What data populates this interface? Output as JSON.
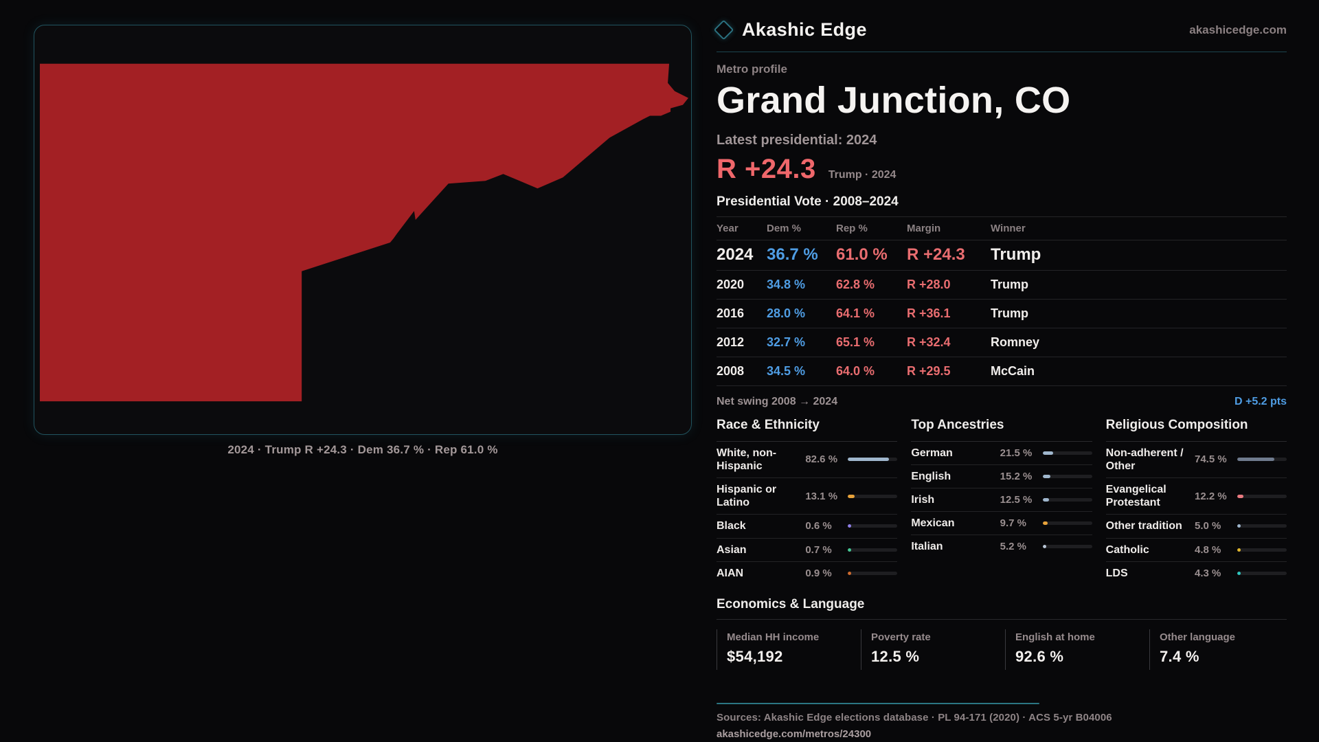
{
  "brand": {
    "name": "Akashic Edge",
    "site": "akashicedge.com",
    "accent_teal": "#2b7180"
  },
  "map": {
    "caption": "2024 · Trump R +24.3 · Dem 36.7 % · Rep 61.0 %",
    "region_color": "#a32024",
    "panel_border_color": "#21545f"
  },
  "profile": {
    "kicker": "Metro profile",
    "title": "Grand Junction, CO",
    "latest_label": "Latest presidential: 2024",
    "margin_value": "R +24.3",
    "margin_note": "Trump · 2024",
    "margin_color": "#ef676b"
  },
  "table": {
    "title": "Presidential Vote · 2008–2024",
    "columns": [
      "Year",
      "Dem %",
      "Rep %",
      "Margin",
      "Winner"
    ],
    "rows": [
      {
        "year": "2024",
        "dem": "36.7 %",
        "rep": "61.0 %",
        "margin": "R +24.3",
        "winner": "Trump"
      },
      {
        "year": "2020",
        "dem": "34.8 %",
        "rep": "62.8 %",
        "margin": "R +28.0",
        "winner": "Trump"
      },
      {
        "year": "2016",
        "dem": "28.0 %",
        "rep": "64.1 %",
        "margin": "R +36.1",
        "winner": "Trump"
      },
      {
        "year": "2012",
        "dem": "32.7 %",
        "rep": "65.1 %",
        "margin": "R +32.4",
        "winner": "Romney"
      },
      {
        "year": "2008",
        "dem": "34.5 %",
        "rep": "64.0 %",
        "margin": "R +29.5",
        "winner": "McCain"
      }
    ],
    "net_swing_label": "Net swing 2008 → 2024",
    "net_swing_value": "D +5.2 pts",
    "dem_color": "#4f9de4",
    "rep_color": "#e96d70"
  },
  "sections": [
    {
      "title": "Race & Ethnicity",
      "items": [
        {
          "label": "White, non-Hispanic",
          "value": "82.6 %",
          "pct": 82.6,
          "color": "#9fb6cd"
        },
        {
          "label": "Hispanic or Latino",
          "value": "13.1 %",
          "pct": 13.1,
          "color": "#e8a23a"
        },
        {
          "label": "Black",
          "value": "0.6 %",
          "pct": 0.6,
          "color": "#8f7fe8"
        },
        {
          "label": "Asian",
          "value": "0.7 %",
          "pct": 0.7,
          "color": "#45c794"
        },
        {
          "label": "AIAN",
          "value": "0.9 %",
          "pct": 0.9,
          "color": "#cf6b2e"
        }
      ]
    },
    {
      "title": "Top Ancestries",
      "items": [
        {
          "label": "German",
          "value": "21.5 %",
          "pct": 21.5,
          "color": "#9fb6cd"
        },
        {
          "label": "English",
          "value": "15.2 %",
          "pct": 15.2,
          "color": "#9fb6cd"
        },
        {
          "label": "Irish",
          "value": "12.5 %",
          "pct": 12.5,
          "color": "#9fb6cd"
        },
        {
          "label": "Mexican",
          "value": "9.7 %",
          "pct": 9.7,
          "color": "#e8a23a"
        },
        {
          "label": "Italian",
          "value": "5.2 %",
          "pct": 5.2,
          "color": "#b9c6d6"
        }
      ]
    },
    {
      "title": "Religious Composition",
      "items": [
        {
          "label": "Non-adherent / Other",
          "value": "74.5 %",
          "pct": 74.5,
          "color": "#6f7b8e"
        },
        {
          "label": "Evangelical Protestant",
          "value": "12.2 %",
          "pct": 12.2,
          "color": "#ea7a80"
        },
        {
          "label": "Other tradition",
          "value": "5.0 %",
          "pct": 5.0,
          "color": "#9fb6cd"
        },
        {
          "label": "Catholic",
          "value": "4.8 %",
          "pct": 4.8,
          "color": "#e0b62e"
        },
        {
          "label": "LDS",
          "value": "4.3 %",
          "pct": 4.3,
          "color": "#2fc6bf"
        }
      ]
    }
  ],
  "economics": {
    "title": "Economics & Language",
    "stats": [
      {
        "label": "Median HH income",
        "value": "$54,192"
      },
      {
        "label": "Poverty rate",
        "value": "12.5 %"
      },
      {
        "label": "English at home",
        "value": "92.6 %"
      },
      {
        "label": "Other language",
        "value": "7.4 %"
      }
    ]
  },
  "footer": {
    "sources": "Sources: Akashic Edge elections database · PL 94-171 (2020) · ACS 5-yr B04006",
    "permalink": "akashicedge.com/metros/24300"
  },
  "chart_data": [
    {
      "type": "table",
      "title": "Presidential Vote · 2008–2024",
      "columns": [
        "Year",
        "Dem %",
        "Rep %",
        "Margin",
        "Winner"
      ],
      "rows": [
        [
          "2024",
          36.7,
          61.0,
          "R +24.3",
          "Trump"
        ],
        [
          "2020",
          34.8,
          62.8,
          "R +28.0",
          "Trump"
        ],
        [
          "2016",
          28.0,
          64.1,
          "R +36.1",
          "Trump"
        ],
        [
          "2012",
          32.7,
          65.1,
          "R +32.4",
          "Romney"
        ],
        [
          "2008",
          34.5,
          64.0,
          "R +29.5",
          "McCain"
        ]
      ],
      "annotations": [
        "Net swing 2008 → 2024: D +5.2 pts"
      ]
    },
    {
      "type": "bar",
      "title": "Race & Ethnicity",
      "categories": [
        "White, non-Hispanic",
        "Hispanic or Latino",
        "Black",
        "Asian",
        "AIAN"
      ],
      "values": [
        82.6,
        13.1,
        0.6,
        0.7,
        0.9
      ],
      "xlabel": "",
      "ylabel": "%",
      "xlim": [
        0,
        100
      ],
      "legend": false
    },
    {
      "type": "bar",
      "title": "Top Ancestries",
      "categories": [
        "German",
        "English",
        "Irish",
        "Mexican",
        "Italian"
      ],
      "values": [
        21.5,
        15.2,
        12.5,
        9.7,
        5.2
      ],
      "xlabel": "",
      "ylabel": "%",
      "xlim": [
        0,
        100
      ],
      "legend": false
    },
    {
      "type": "bar",
      "title": "Religious Composition",
      "categories": [
        "Non-adherent / Other",
        "Evangelical Protestant",
        "Other tradition",
        "Catholic",
        "LDS"
      ],
      "values": [
        74.5,
        12.2,
        5.0,
        4.8,
        4.3
      ],
      "xlabel": "",
      "ylabel": "%",
      "xlim": [
        0,
        100
      ],
      "legend": false
    }
  ]
}
